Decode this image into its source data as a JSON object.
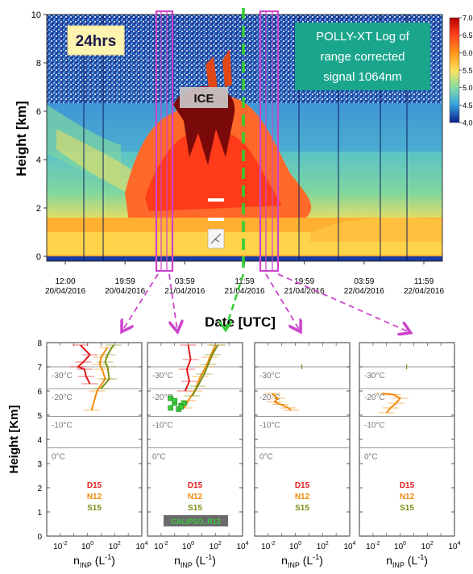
{
  "top_panel": {
    "badge": "24hrs",
    "title_lines": [
      "POLLY-XT Log of",
      "range corrected",
      "signal 1064nm"
    ],
    "ylabel": "Height [km]",
    "xlabel": "Date [UTC]",
    "yticks": [
      "0",
      "2",
      "4",
      "6",
      "8",
      "10"
    ],
    "xticks": [
      {
        "time": "12:00",
        "date": "20/04/2016"
      },
      {
        "time": "19:59",
        "date": "20/04/2016"
      },
      {
        "time": "03:59",
        "date": "21/04/2016"
      },
      {
        "time": "11:59",
        "date": "21/04/2016"
      },
      {
        "time": "19:59",
        "date": "21/04/2016"
      },
      {
        "time": "03:59",
        "date": "22/04/2016"
      },
      {
        "time": "11:59",
        "date": "22/04/2016"
      }
    ],
    "colorbar_ticks": [
      "7.0",
      "6.5",
      "6.0",
      "5.5",
      "5.0",
      "4.5",
      "4.0"
    ],
    "annotation_ice": "ICE"
  },
  "bottom_panels": {
    "ylabel": "Height [Km]",
    "xlabel_main": "n",
    "xlabel_sub": "INP",
    "xlabel_unit": "(L",
    "xlabel_exp": "-1",
    "xlabel_close": ")",
    "yticks": [
      "0",
      "1",
      "2",
      "3",
      "4",
      "5",
      "6",
      "7",
      "8"
    ],
    "xticks": [
      {
        "base": "10",
        "exp": "-2"
      },
      {
        "base": "10",
        "exp": "0"
      },
      {
        "base": "10",
        "exp": "2"
      },
      {
        "base": "10",
        "exp": "4"
      }
    ],
    "isotherms": [
      {
        "label": "-30°C",
        "height": 7.0
      },
      {
        "label": "-20°C",
        "height": 6.1
      },
      {
        "label": "-10°C",
        "height": 4.95
      },
      {
        "label": "0°C",
        "height": 3.65
      }
    ],
    "legend": [
      {
        "label": "D15",
        "color": "#e31a1c"
      },
      {
        "label": "N12",
        "color": "#f28a0c"
      },
      {
        "label": "S15",
        "color": "#7a8f14"
      }
    ],
    "extra_label": "CALIPSO, R13",
    "extra_color": "#3cc83c"
  },
  "colors": {
    "bracket": "#cc44cc",
    "dashed_line": "#33cc33",
    "title_box": "#1aa68c",
    "badge_bg": "#fff3b0"
  },
  "chart_data": [
    {
      "type": "heatmap",
      "title": "POLLY-XT Log of range corrected signal 1064nm",
      "xlabel": "Date [UTC]",
      "ylabel": "Height [km]",
      "x_ticks": [
        "12:00 20/04/2016",
        "19:59 20/04/2016",
        "03:59 21/04/2016",
        "11:59 21/04/2016",
        "19:59 21/04/2016",
        "03:59 22/04/2016",
        "11:59 22/04/2016"
      ],
      "ylim": [
        0,
        10
      ],
      "colorbar_range": [
        4.0,
        7.0
      ]
    },
    {
      "type": "line",
      "xlabel": "nINP (L-1)",
      "ylabel": "Height [Km]",
      "xscale": "log",
      "xlim": [
        0.001,
        10000
      ],
      "ylim": [
        0,
        8
      ],
      "series": [
        {
          "name": "D15",
          "x": [
            0.3,
            1.5,
            0.5,
            0.2,
            0.6,
            0.8,
            1.5
          ],
          "y": [
            7.9,
            7.5,
            7.2,
            7.0,
            6.9,
            6.6,
            6.3
          ]
        },
        {
          "name": "N12",
          "x": [
            30,
            10,
            8,
            12,
            20,
            5,
            2
          ],
          "y": [
            7.8,
            7.4,
            7.1,
            6.9,
            6.5,
            6.0,
            5.2
          ]
        },
        {
          "name": "S15",
          "x": [
            80,
            30,
            20,
            30,
            40,
            10
          ],
          "y": [
            7.9,
            7.5,
            7.2,
            7.0,
            6.5,
            6.1
          ]
        }
      ]
    },
    {
      "type": "line",
      "xlabel": "nINP (L-1)",
      "ylabel": "Height [Km]",
      "xscale": "log",
      "xlim": [
        0.001,
        10000
      ],
      "ylim": [
        0,
        8
      ],
      "series": [
        {
          "name": "D15",
          "x": [
            1,
            1.5,
            0.8,
            1.2,
            0.6
          ],
          "y": [
            7.9,
            7.3,
            6.9,
            6.4,
            6.0
          ]
        },
        {
          "name": "N12",
          "x": [
            100,
            40,
            20,
            8,
            3,
            1,
            0.5
          ],
          "y": [
            7.9,
            7.4,
            7.0,
            6.6,
            6.0,
            5.6,
            5.3
          ]
        },
        {
          "name": "S15",
          "x": [
            150,
            60,
            30,
            15,
            5,
            2
          ],
          "y": [
            7.9,
            7.5,
            7.1,
            6.7,
            6.2,
            5.8
          ]
        },
        {
          "name": "CALIPSO, R13",
          "x": [
            0.05,
            0.1,
            0.3,
            0.05,
            0.2,
            0.5,
            0.1,
            0.3
          ],
          "y": [
            5.7,
            5.5,
            5.4,
            5.3,
            5.25,
            5.5,
            5.6,
            5.35
          ]
        }
      ]
    },
    {
      "type": "line",
      "xlabel": "nINP (L-1)",
      "ylabel": "Height [Km]",
      "xscale": "log",
      "xlim": [
        0.001,
        10000
      ],
      "ylim": [
        0,
        8
      ],
      "series": [
        {
          "name": "N12",
          "x": [
            0.02,
            0.05,
            0.03,
            0.08,
            0.3,
            0.5
          ],
          "y": [
            5.9,
            5.7,
            5.55,
            5.45,
            5.3,
            5.2
          ]
        },
        {
          "name": "S15",
          "x": [
            3
          ],
          "y": [
            7.0
          ]
        }
      ]
    },
    {
      "type": "line",
      "xlabel": "nINP (L-1)",
      "ylabel": "Height [Km]",
      "xscale": "log",
      "xlim": [
        0.001,
        10000
      ],
      "ylim": [
        0,
        8
      ],
      "series": [
        {
          "name": "N12",
          "x": [
            0.05,
            0.3,
            1,
            0.5,
            0.2,
            0.1
          ],
          "y": [
            5.9,
            5.85,
            5.7,
            5.5,
            5.3,
            5.1
          ]
        },
        {
          "name": "S15",
          "x": [
            3
          ],
          "y": [
            7.0
          ]
        }
      ]
    }
  ]
}
